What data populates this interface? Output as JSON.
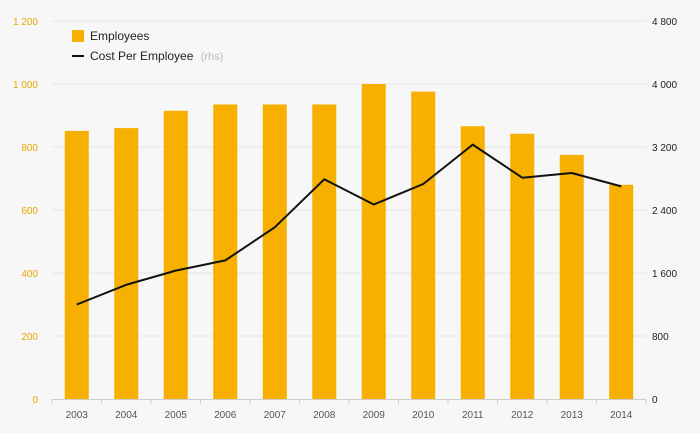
{
  "chart_data": {
    "type": "bar",
    "categories": [
      "2003",
      "2004",
      "2005",
      "2006",
      "2007",
      "2008",
      "2009",
      "2010",
      "2011",
      "2012",
      "2013",
      "2014"
    ],
    "series": [
      {
        "name": "Employees",
        "kind": "bar",
        "axis": "left",
        "color": "#f7b000",
        "values": [
          851,
          860,
          915,
          935,
          935,
          935,
          1000,
          976,
          866,
          842,
          775,
          680
        ]
      },
      {
        "name": "Cost Per Employee",
        "kind": "line",
        "axis": "right",
        "color": "#111111",
        "values": [
          1200,
          1450,
          1630,
          1760,
          2180,
          2790,
          2470,
          2730,
          3230,
          2810,
          2870,
          2700
        ]
      }
    ],
    "legend": {
      "position": "top-left",
      "rhs_note": "(rhs)"
    },
    "y_left": {
      "ylim": [
        0,
        1200
      ],
      "ticks": [
        "0",
        "200",
        "400",
        "600",
        "800",
        "1 000",
        "1 200"
      ],
      "color": "#e6a800"
    },
    "y_right": {
      "ylim": [
        0,
        4800
      ],
      "ticks": [
        "0",
        "800",
        "1 600",
        "2 400",
        "3 200",
        "4 000",
        "4 800"
      ]
    },
    "grid": true
  }
}
